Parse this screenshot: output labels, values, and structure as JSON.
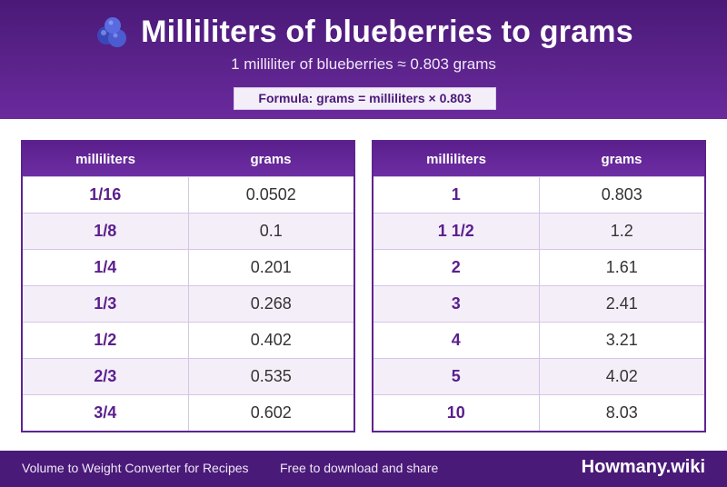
{
  "header": {
    "title": "Milliliters of blueberries to grams",
    "subtitle": "1 milliliter of blueberries ≈ 0.803 grams",
    "formula": "Formula: grams = milliliters × 0.803",
    "icon": "blueberries-icon"
  },
  "tables": [
    {
      "col_ml": "milliliters",
      "col_g": "grams",
      "rows": [
        {
          "ml": "1/16",
          "g": "0.0502"
        },
        {
          "ml": "1/8",
          "g": "0.1"
        },
        {
          "ml": "1/4",
          "g": "0.201"
        },
        {
          "ml": "1/3",
          "g": "0.268"
        },
        {
          "ml": "1/2",
          "g": "0.402"
        },
        {
          "ml": "2/3",
          "g": "0.535"
        },
        {
          "ml": "3/4",
          "g": "0.602"
        }
      ]
    },
    {
      "col_ml": "milliliters",
      "col_g": "grams",
      "rows": [
        {
          "ml": "1",
          "g": "0.803"
        },
        {
          "ml": "1 1/2",
          "g": "1.2"
        },
        {
          "ml": "2",
          "g": "1.61"
        },
        {
          "ml": "3",
          "g": "2.41"
        },
        {
          "ml": "4",
          "g": "3.21"
        },
        {
          "ml": "5",
          "g": "4.02"
        },
        {
          "ml": "10",
          "g": "8.03"
        }
      ]
    }
  ],
  "footer": {
    "left_text": "Volume to Weight Converter for Recipes",
    "share_text": "Free to download and share",
    "brand": "Howmany.wiki"
  },
  "colors": {
    "primary": "#4a1a78",
    "accent": "#6a2a9c",
    "row_alt": "#f4eef9"
  }
}
